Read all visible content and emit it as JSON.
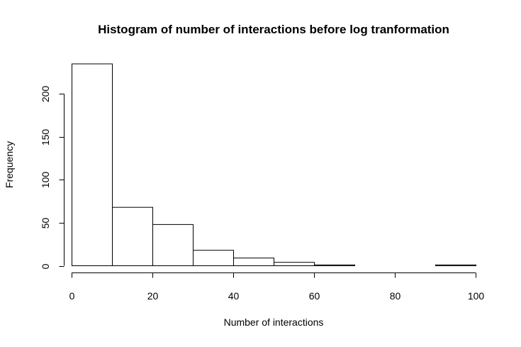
{
  "chart_data": {
    "type": "bar",
    "title": "Histogram of number of interactions before log tranformation",
    "xlabel": "Number of interactions",
    "ylabel": "Frequency",
    "bins": [
      {
        "start": 0,
        "end": 10,
        "count": 235
      },
      {
        "start": 10,
        "end": 20,
        "count": 68
      },
      {
        "start": 20,
        "end": 30,
        "count": 48
      },
      {
        "start": 30,
        "end": 40,
        "count": 18
      },
      {
        "start": 40,
        "end": 50,
        "count": 9
      },
      {
        "start": 50,
        "end": 60,
        "count": 4
      },
      {
        "start": 60,
        "end": 70,
        "count": 1
      },
      {
        "start": 70,
        "end": 80,
        "count": 0
      },
      {
        "start": 80,
        "end": 90,
        "count": 0
      },
      {
        "start": 90,
        "end": 100,
        "count": 1
      }
    ],
    "xlim": [
      0,
      100
    ],
    "ylim": [
      0,
      235
    ],
    "x_ticks": [
      0,
      20,
      40,
      60,
      80,
      100
    ],
    "y_ticks": [
      0,
      50,
      100,
      150,
      200
    ],
    "grid": false,
    "bar_fill": "#ffffff",
    "bar_stroke": "#000000"
  }
}
